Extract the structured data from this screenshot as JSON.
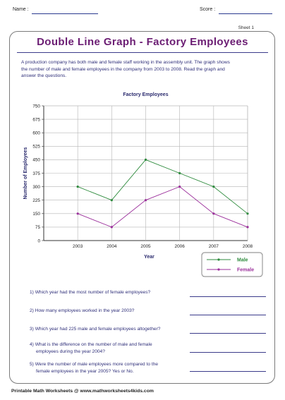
{
  "header": {
    "name_label": "Name :",
    "score_label": "Score :"
  },
  "sheet_label": "Sheet 1",
  "title": "Double Line Graph - Factory Employees",
  "intro_lines": [
    "A production company has both male and female staff working in the assembly unit. The graph shows",
    "the number of male and female employees in the company from 2003 to 2008. Read the graph and",
    "answer the questions."
  ],
  "chart_data": {
    "type": "line",
    "title": "Factory Employees",
    "xlabel": "Year",
    "ylabel": "Number of Employees",
    "categories": [
      "2003",
      "2004",
      "2005",
      "2006",
      "2007",
      "2008"
    ],
    "yticks": [
      "0",
      "75",
      "150",
      "225",
      "300",
      "375",
      "450",
      "525",
      "600",
      "675",
      "750"
    ],
    "ylim": [
      0,
      750
    ],
    "grid": true,
    "legend": "bottom-right",
    "series": [
      {
        "name": "Male",
        "values": [
          300,
          225,
          450,
          375,
          300,
          150
        ],
        "color": "#2e8b3d"
      },
      {
        "name": "Female",
        "values": [
          150,
          75,
          225,
          300,
          150,
          75
        ],
        "color": "#9b2f9b"
      }
    ]
  },
  "questions": [
    [
      "1) Which year had the most number of female employees?"
    ],
    [
      "2) How many employees worked in the year 2003?"
    ],
    [
      "3) Which year had 225 male and female employees altogether?"
    ],
    [
      "4) What is the difference on the number of male and female",
      "employees during the year 2004?"
    ],
    [
      "5) Were the number of male employees more compared to the",
      "female employees in the year 2005? Yes or No."
    ]
  ],
  "footer": "Printable Math Worksheets @ www.mathworksheets4kids.com"
}
